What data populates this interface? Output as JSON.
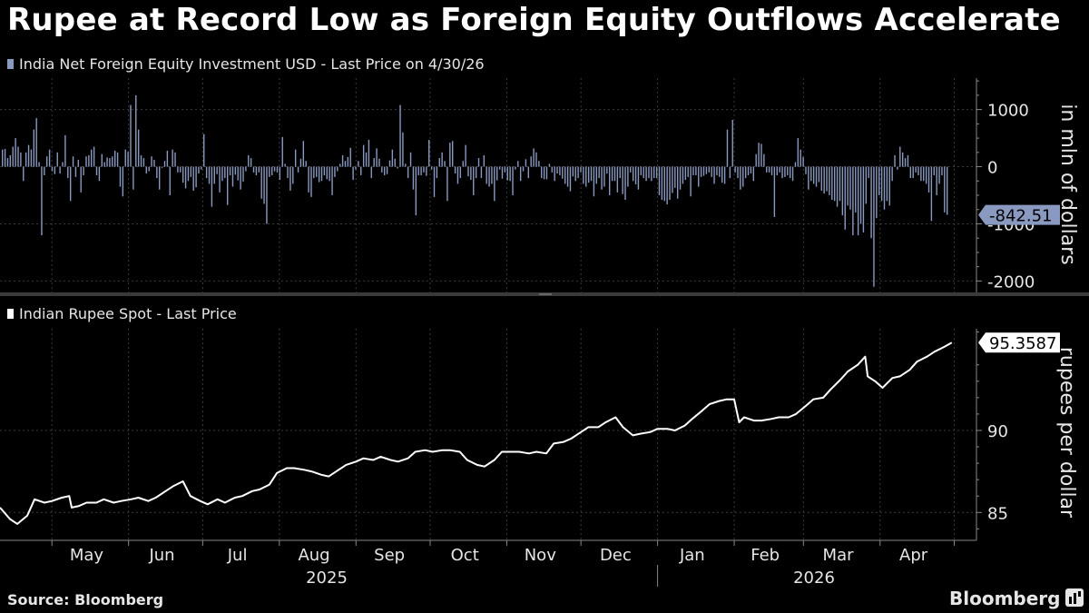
{
  "title": "Rupee at Record Low as Foreign Equity Outflows Accelerate",
  "source": "Source: Bloomberg",
  "brand": "Bloomberg",
  "colors": {
    "bars": "#8a99bf",
    "line": "#ffffff",
    "grid": "#3a3a3a",
    "axis": "#888888",
    "background": "#000000"
  },
  "chart_data": [
    {
      "type": "bar",
      "legend": "India Net Foreign Equity Investment USD - Last Price on 4/30/26",
      "ylabel": "in mln of dollars",
      "yticks": [
        1000,
        0,
        -1000,
        -2000
      ],
      "ylim": [
        -2200,
        1550
      ],
      "last_value_label": "-842.51",
      "last_value": -842.51,
      "values": [
        300,
        310,
        150,
        200,
        350,
        500,
        350,
        250,
        -250,
        250,
        380,
        300,
        650,
        850,
        80,
        -1200,
        -150,
        180,
        300,
        -80,
        -130,
        250,
        -120,
        80,
        550,
        -200,
        -600,
        180,
        -180,
        120,
        -450,
        -150,
        180,
        200,
        300,
        350,
        -150,
        -250,
        220,
        80,
        160,
        150,
        180,
        280,
        250,
        -350,
        -520,
        300,
        260,
        1080,
        -400,
        1250,
        650,
        200,
        150,
        -120,
        -80,
        180,
        120,
        -200,
        -400,
        -20,
        100,
        280,
        -500,
        300,
        250,
        -100,
        -100,
        -280,
        -380,
        -250,
        -180,
        -420,
        -360,
        -120,
        -50,
        570,
        -200,
        -300,
        -700,
        -300,
        -130,
        -450,
        -250,
        -200,
        -670,
        -150,
        -350,
        -140,
        -240,
        -400,
        -260,
        -80,
        200,
        150,
        -100,
        -150,
        -100,
        -560,
        -650,
        -1000,
        -180,
        -150,
        -80,
        -100,
        -230,
        520,
        50,
        -200,
        -420,
        -300,
        300,
        -100,
        140,
        450,
        100,
        -450,
        -530,
        -200,
        -180,
        -270,
        -250,
        -150,
        -220,
        -250,
        -500,
        -180,
        -80,
        50,
        200,
        100,
        170,
        330,
        -230,
        -50,
        100,
        -150,
        380,
        250,
        470,
        -200,
        150,
        320,
        140,
        -100,
        -150,
        -130,
        110,
        300,
        140,
        -30,
        1080,
        600,
        50,
        -200,
        250,
        -400,
        -850,
        -150,
        -150,
        -100,
        -160,
        470,
        -50,
        -530,
        -200,
        150,
        250,
        100,
        -600,
        420,
        450,
        -120,
        -300,
        -200,
        100,
        380,
        -170,
        -230,
        -500,
        -200,
        150,
        -200,
        200,
        -300,
        -350,
        -300,
        -600,
        -240,
        -50,
        -210,
        -100,
        -240,
        -250,
        -500,
        -50,
        100,
        -250,
        -80,
        130,
        -200,
        180,
        320,
        250,
        100,
        -200,
        -220,
        -220,
        50,
        -100,
        -250,
        -120,
        -150,
        -210,
        -300,
        -350,
        -430,
        -170,
        -250,
        -200,
        -100,
        -300,
        -350,
        -280,
        -250,
        -520,
        -300,
        -200,
        -400,
        -350,
        -120,
        -500,
        -250,
        -250,
        -450,
        -200,
        -480,
        -580,
        -350,
        -100,
        -250,
        -310,
        -400,
        -150,
        -200,
        -250,
        -200,
        -250,
        -200,
        -200,
        -500,
        -580,
        -600,
        -660,
        -580,
        -460,
        -370,
        -560,
        -400,
        -300,
        -230,
        -180,
        -520,
        -150,
        -150,
        -350,
        -180,
        -160,
        -130,
        -100,
        -180,
        -300,
        -150,
        -180,
        -280,
        -300,
        650,
        -200,
        820,
        -100,
        -200,
        -400,
        -350,
        -200,
        -150,
        -120,
        -250,
        220,
        420,
        400,
        220,
        -100,
        -100,
        -150,
        -880,
        -150,
        -100,
        -200,
        -180,
        -150,
        -200,
        -250,
        80,
        500,
        300,
        170,
        -130,
        -400,
        -250,
        -300,
        -350,
        -270,
        -420,
        -470,
        -430,
        -500,
        -580,
        -600,
        -700,
        -600,
        -850,
        -1100,
        -680,
        -750,
        -1200,
        -800,
        -1200,
        -1000,
        -1150,
        -650,
        -200,
        -1250,
        -2100,
        -900,
        -500,
        -600,
        -750,
        -600,
        -680,
        -250,
        200,
        -50,
        350,
        250,
        150,
        200,
        -200,
        -200,
        -100,
        -150,
        -250,
        -250,
        -300,
        -450,
        -950,
        -150,
        -500,
        -300,
        -150,
        -800,
        -842.51
      ]
    },
    {
      "type": "line",
      "legend": "Indian Rupee Spot - Last Price",
      "ylabel": "rupees per dollar",
      "yticks": [
        85,
        90
      ],
      "ylim": [
        83.3,
        96.2
      ],
      "last_value_label": "95.3587",
      "last_value": 95.3587,
      "points": [
        [
          "2025-04-10",
          85.3
        ],
        [
          "2025-04-14",
          84.6
        ],
        [
          "2025-04-17",
          84.3
        ],
        [
          "2025-04-21",
          84.8
        ],
        [
          "2025-04-24",
          85.8
        ],
        [
          "2025-04-28",
          85.6
        ],
        [
          "2025-05-01",
          85.7
        ],
        [
          "2025-05-05",
          85.9
        ],
        [
          "2025-05-08",
          86.0
        ],
        [
          "2025-05-09",
          85.3
        ],
        [
          "2025-05-12",
          85.4
        ],
        [
          "2025-05-15",
          85.6
        ],
        [
          "2025-05-19",
          85.6
        ],
        [
          "2025-05-22",
          85.8
        ],
        [
          "2025-05-26",
          85.6
        ],
        [
          "2025-05-29",
          85.7
        ],
        [
          "2025-06-02",
          85.8
        ],
        [
          "2025-06-05",
          85.9
        ],
        [
          "2025-06-09",
          85.7
        ],
        [
          "2025-06-12",
          85.9
        ],
        [
          "2025-06-16",
          86.3
        ],
        [
          "2025-06-19",
          86.6
        ],
        [
          "2025-06-23",
          86.9
        ],
        [
          "2025-06-26",
          86.0
        ],
        [
          "2025-06-30",
          85.7
        ],
        [
          "2025-07-03",
          85.5
        ],
        [
          "2025-07-07",
          85.8
        ],
        [
          "2025-07-10",
          85.6
        ],
        [
          "2025-07-14",
          85.9
        ],
        [
          "2025-07-17",
          86.0
        ],
        [
          "2025-07-21",
          86.3
        ],
        [
          "2025-07-24",
          86.4
        ],
        [
          "2025-07-28",
          86.7
        ],
        [
          "2025-07-31",
          87.4
        ],
        [
          "2025-08-04",
          87.7
        ],
        [
          "2025-08-07",
          87.7
        ],
        [
          "2025-08-11",
          87.6
        ],
        [
          "2025-08-14",
          87.5
        ],
        [
          "2025-08-18",
          87.3
        ],
        [
          "2025-08-21",
          87.2
        ],
        [
          "2025-08-25",
          87.6
        ],
        [
          "2025-08-28",
          87.9
        ],
        [
          "2025-09-01",
          88.1
        ],
        [
          "2025-09-04",
          88.3
        ],
        [
          "2025-09-08",
          88.2
        ],
        [
          "2025-09-11",
          88.4
        ],
        [
          "2025-09-15",
          88.2
        ],
        [
          "2025-09-18",
          88.1
        ],
        [
          "2025-09-22",
          88.3
        ],
        [
          "2025-09-25",
          88.7
        ],
        [
          "2025-09-29",
          88.8
        ],
        [
          "2025-10-02",
          88.7
        ],
        [
          "2025-10-06",
          88.8
        ],
        [
          "2025-10-09",
          88.8
        ],
        [
          "2025-10-13",
          88.7
        ],
        [
          "2025-10-16",
          88.2
        ],
        [
          "2025-10-20",
          87.9
        ],
        [
          "2025-10-23",
          87.8
        ],
        [
          "2025-10-27",
          88.2
        ],
        [
          "2025-10-30",
          88.7
        ],
        [
          "2025-11-03",
          88.7
        ],
        [
          "2025-11-06",
          88.7
        ],
        [
          "2025-11-10",
          88.6
        ],
        [
          "2025-11-13",
          88.7
        ],
        [
          "2025-11-17",
          88.6
        ],
        [
          "2025-11-20",
          89.2
        ],
        [
          "2025-11-24",
          89.3
        ],
        [
          "2025-11-27",
          89.5
        ],
        [
          "2025-12-01",
          89.9
        ],
        [
          "2025-12-04",
          90.2
        ],
        [
          "2025-12-08",
          90.2
        ],
        [
          "2025-12-11",
          90.5
        ],
        [
          "2025-12-15",
          90.8
        ],
        [
          "2025-12-18",
          90.2
        ],
        [
          "2025-12-22",
          89.7
        ],
        [
          "2025-12-25",
          89.8
        ],
        [
          "2025-12-29",
          89.9
        ],
        [
          "2026-01-01",
          90.1
        ],
        [
          "2026-01-05",
          90.1
        ],
        [
          "2026-01-08",
          90.0
        ],
        [
          "2026-01-12",
          90.3
        ],
        [
          "2026-01-15",
          90.7
        ],
        [
          "2026-01-19",
          91.2
        ],
        [
          "2026-01-22",
          91.6
        ],
        [
          "2026-01-26",
          91.8
        ],
        [
          "2026-01-29",
          91.9
        ],
        [
          "2026-02-01",
          91.9
        ],
        [
          "2026-02-03",
          90.5
        ],
        [
          "2026-02-05",
          90.8
        ],
        [
          "2026-02-09",
          90.6
        ],
        [
          "2026-02-12",
          90.6
        ],
        [
          "2026-02-16",
          90.7
        ],
        [
          "2026-02-19",
          90.8
        ],
        [
          "2026-02-23",
          90.8
        ],
        [
          "2026-02-26",
          91.0
        ],
        [
          "2026-03-02",
          91.5
        ],
        [
          "2026-03-05",
          91.9
        ],
        [
          "2026-03-09",
          92.0
        ],
        [
          "2026-03-12",
          92.5
        ],
        [
          "2026-03-16",
          93.1
        ],
        [
          "2026-03-19",
          93.6
        ],
        [
          "2026-03-23",
          94.0
        ],
        [
          "2026-03-26",
          94.5
        ],
        [
          "2026-03-27",
          93.3
        ],
        [
          "2026-03-30",
          93.0
        ],
        [
          "2026-04-02",
          92.6
        ],
        [
          "2026-04-06",
          93.2
        ],
        [
          "2026-04-09",
          93.3
        ],
        [
          "2026-04-13",
          93.7
        ],
        [
          "2026-04-16",
          94.2
        ],
        [
          "2026-04-20",
          94.5
        ],
        [
          "2026-04-23",
          94.8
        ],
        [
          "2026-04-27",
          95.1
        ],
        [
          "2026-04-30",
          95.3587
        ]
      ]
    }
  ],
  "xaxis": {
    "start": "2025-04-10",
    "end": "2026-05-10",
    "months": [
      "May",
      "Jun",
      "Jul",
      "Aug",
      "Sep",
      "Oct",
      "Nov",
      "Dec",
      "Jan",
      "Feb",
      "Mar",
      "Apr"
    ],
    "years": [
      "2025",
      "2026"
    ]
  }
}
